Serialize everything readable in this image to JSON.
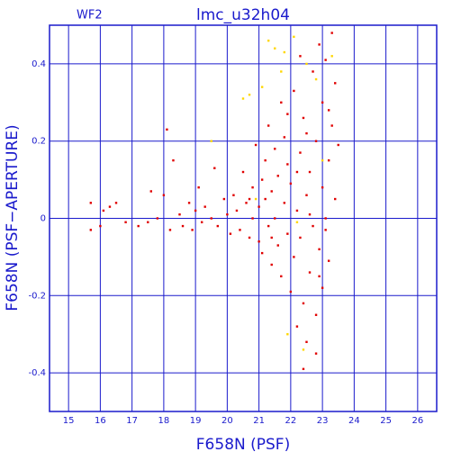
{
  "chart_data": {
    "type": "scatter",
    "title": "lmc_u32h04",
    "subtitle": "WF2",
    "x_label": "F658N (PSF)",
    "y_label": "F658N (PSF−APERTURE)",
    "xlim": [
      14.4,
      26.6
    ],
    "ylim": [
      -0.5,
      0.5
    ],
    "xticks": [
      15,
      16,
      17,
      18,
      19,
      20,
      21,
      22,
      23,
      24,
      25,
      26
    ],
    "yticks": [
      -0.4,
      -0.2,
      0,
      0.2,
      0.4
    ],
    "grid": true,
    "series": [
      {
        "color": "#ffd700",
        "x": [
          21.3,
          21.5,
          21.7,
          21.8,
          22.1,
          20.5,
          20.7,
          21.1,
          22.5,
          23.3,
          21.9,
          22.4,
          22.8,
          20.9,
          22.2,
          23.0,
          19.5
        ],
        "values": [
          0.46,
          0.44,
          0.38,
          0.43,
          0.47,
          0.31,
          0.32,
          0.34,
          0.4,
          0.42,
          -0.3,
          -0.34,
          0.36,
          0.05,
          -0.01,
          0.15,
          0.2
        ]
      },
      {
        "color": "#e00000",
        "x": [
          15.7,
          15.7,
          16.0,
          16.1,
          16.3,
          16.5,
          16.8,
          17.2,
          17.5,
          17.6,
          17.8,
          18.0,
          18.1,
          18.2,
          18.3,
          18.5,
          18.6,
          18.8,
          18.9,
          19.0,
          19.1,
          19.2,
          19.3,
          19.5,
          19.6,
          19.7,
          19.9,
          20.0,
          20.1,
          20.2,
          20.3,
          20.4,
          20.5,
          20.6,
          20.7,
          20.8,
          20.8,
          20.9,
          21.0,
          21.0,
          21.1,
          21.1,
          21.2,
          21.2,
          21.3,
          21.3,
          21.4,
          21.4,
          21.5,
          21.5,
          21.6,
          21.6,
          21.7,
          21.7,
          21.8,
          21.8,
          21.9,
          21.9,
          22.0,
          22.0,
          22.1,
          22.1,
          22.2,
          22.2,
          22.3,
          22.3,
          22.4,
          22.4,
          22.5,
          22.5,
          22.6,
          22.6,
          22.7,
          22.7,
          22.8,
          22.8,
          22.9,
          22.9,
          23.0,
          23.0,
          23.0,
          23.1,
          23.1,
          23.2,
          23.2,
          23.3,
          23.3,
          23.4,
          23.4,
          23.5,
          22.4,
          22.8,
          22.3,
          23.2,
          21.9,
          22.6,
          22.2,
          21.4,
          20.7,
          22.9,
          23.1,
          22.5
        ],
        "values": [
          0.04,
          -0.03,
          -0.02,
          0.02,
          0.03,
          0.04,
          -0.01,
          -0.02,
          -0.01,
          0.07,
          0.0,
          0.06,
          0.23,
          -0.03,
          0.15,
          0.01,
          -0.02,
          0.04,
          -0.03,
          0.02,
          0.08,
          -0.01,
          0.03,
          0.0,
          0.13,
          -0.02,
          0.05,
          0.01,
          -0.04,
          0.06,
          0.02,
          -0.03,
          0.12,
          0.04,
          -0.05,
          0.08,
          0.0,
          0.19,
          -0.06,
          0.03,
          0.1,
          -0.09,
          0.15,
          0.05,
          -0.02,
          0.24,
          -0.12,
          0.07,
          0.0,
          0.18,
          -0.07,
          0.11,
          0.3,
          -0.15,
          0.04,
          0.21,
          -0.04,
          0.14,
          -0.19,
          0.09,
          0.33,
          -0.1,
          0.02,
          -0.28,
          0.17,
          -0.05,
          0.26,
          -0.22,
          0.06,
          -0.32,
          0.12,
          -0.14,
          0.38,
          -0.02,
          -0.25,
          0.2,
          0.45,
          -0.08,
          0.08,
          -0.18,
          0.3,
          -0.03,
          0.41,
          0.15,
          -0.11,
          0.24,
          0.48,
          0.05,
          0.35,
          0.19,
          -0.39,
          -0.35,
          0.42,
          0.28,
          0.27,
          0.01,
          0.12,
          -0.05,
          0.05,
          -0.15,
          0.0,
          0.22
        ]
      }
    ]
  }
}
